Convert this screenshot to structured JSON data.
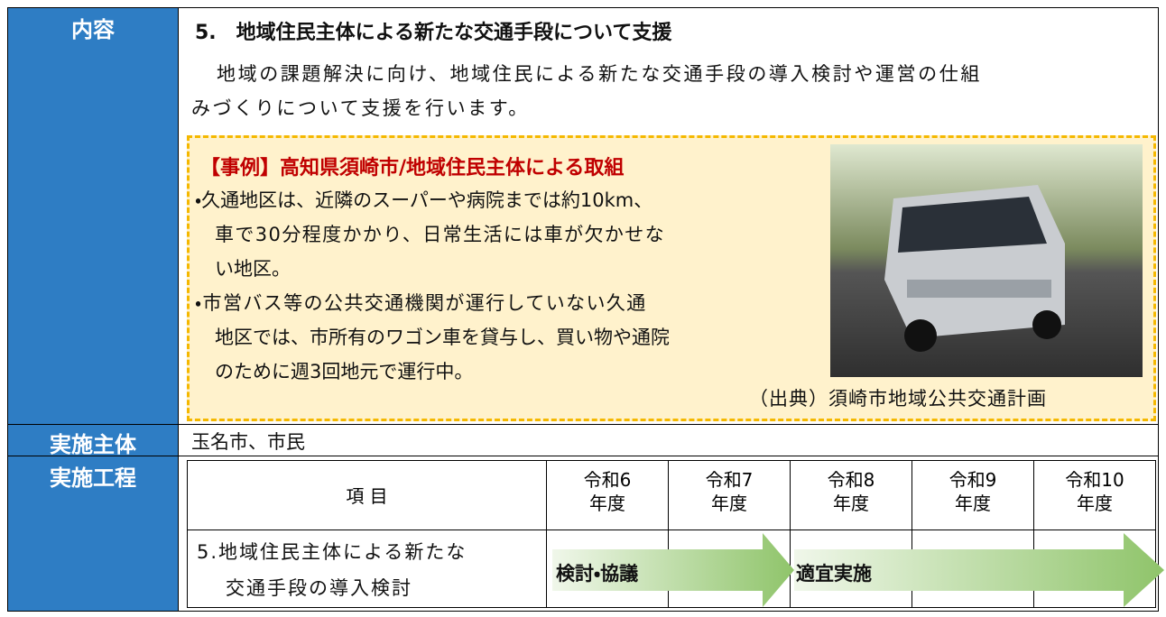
{
  "content": {
    "header": "内容",
    "title": "5.　地域住民主体による新たな交通手段について支援",
    "paragraph_lines": [
      "地域の課題解決に向け、地域住民による新たな交通手段の導入検討や運営の仕組",
      "みづくりについて支援を行います。"
    ],
    "case": {
      "title": "【事例】高知県須崎市/地域住民主体による取組",
      "lines": [
        "・久通地区は、近隣のスーパーや病院までは約10km、",
        "車で30分程度かかり、日常生活には車が欠かせな",
        "い地区。",
        "・市営バス等の公共交通機関が運行していない久通",
        "地区では、市所有のワゴン車を貸与し、買い物や通院",
        "のために週3回地元で運行中。"
      ],
      "source": "（出典）須崎市地域公共交通計画"
    }
  },
  "implementer": {
    "header": "実施主体",
    "text": "玉名市、市民"
  },
  "schedule": {
    "header": "実施工程",
    "columns": [
      [
        "項 目"
      ],
      [
        "令和6",
        "年度"
      ],
      [
        "令和7",
        "年度"
      ],
      [
        "令和8",
        "年度"
      ],
      [
        "令和9",
        "年度"
      ],
      [
        "令和10",
        "年度"
      ]
    ],
    "item_lines": [
      "5.地域住民主体による新たな",
      "交通手段の導入検討"
    ],
    "phases": [
      "検討・協議",
      "適宜実施"
    ]
  }
}
